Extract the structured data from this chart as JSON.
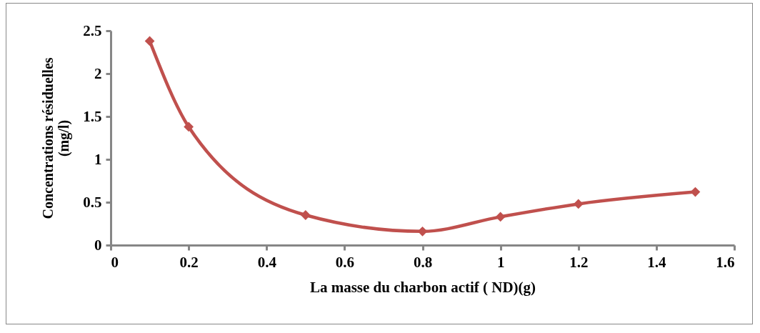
{
  "chart_data": {
    "type": "line",
    "xlabel": "La masse du charbon actif ( ND)(g)",
    "ylabel": "Concentrations résiduelles\n(mg/l)",
    "x": [
      0.1,
      0.2,
      0.5,
      0.8,
      1,
      1.2,
      1.5
    ],
    "series": [
      {
        "color": "#c0504d",
        "values": [
          2.38,
          1.38,
          0.35,
          0.16,
          0.33,
          0.48,
          0.62
        ]
      }
    ],
    "xlim": [
      0,
      1.6
    ],
    "xticks": [
      0,
      0.2,
      0.4,
      0.6,
      0.8,
      1,
      1.2,
      1.4,
      1.6
    ],
    "ylim": [
      0,
      2.5
    ],
    "yticks": [
      0,
      0.5,
      1,
      1.5,
      2,
      2.5
    ],
    "grid": false,
    "marker": "diamond",
    "line_style": "solid"
  }
}
